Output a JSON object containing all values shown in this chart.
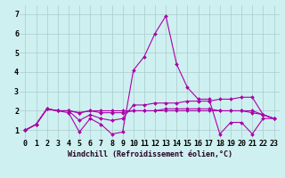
{
  "xlabel": "Windchill (Refroidissement éolien,°C)",
  "ylabel": "",
  "background_color": "#cff0f0",
  "grid_color": "#aacccc",
  "line_color": "#aa00aa",
  "xlim_min": -0.5,
  "xlim_max": 23.5,
  "ylim_min": 0.55,
  "ylim_max": 7.45,
  "yticks": [
    1,
    2,
    3,
    4,
    5,
    6,
    7
  ],
  "xticks": [
    0,
    1,
    2,
    3,
    4,
    5,
    6,
    7,
    8,
    9,
    10,
    11,
    12,
    13,
    14,
    15,
    16,
    17,
    18,
    19,
    20,
    21,
    22,
    23
  ],
  "xtick_labels": [
    "0",
    "1",
    "2",
    "3",
    "4",
    "5",
    "6",
    "7",
    "8",
    "9",
    "10",
    "11",
    "12",
    "13",
    "14",
    "15",
    "16",
    "17",
    "18",
    "19",
    "20",
    "21",
    "22",
    "23"
  ],
  "series": [
    [
      1.0,
      1.3,
      2.1,
      2.0,
      1.9,
      0.9,
      1.6,
      1.3,
      0.8,
      0.9,
      4.1,
      4.8,
      6.0,
      6.9,
      4.4,
      3.2,
      2.6,
      2.6,
      0.8,
      1.4,
      1.4,
      0.8,
      1.6,
      1.6
    ],
    [
      1.0,
      1.3,
      2.1,
      2.0,
      2.0,
      1.5,
      1.8,
      1.6,
      1.5,
      1.6,
      2.3,
      2.3,
      2.4,
      2.4,
      2.4,
      2.5,
      2.5,
      2.5,
      2.6,
      2.6,
      2.7,
      2.7,
      1.8,
      1.6
    ],
    [
      1.0,
      1.3,
      2.1,
      2.0,
      2.0,
      1.9,
      2.0,
      1.9,
      1.9,
      1.9,
      2.0,
      2.0,
      2.0,
      2.1,
      2.1,
      2.1,
      2.1,
      2.1,
      2.0,
      2.0,
      2.0,
      1.9,
      1.8,
      1.6
    ],
    [
      1.0,
      1.3,
      2.1,
      2.0,
      2.0,
      1.9,
      2.0,
      2.0,
      2.0,
      2.0,
      2.0,
      2.0,
      2.0,
      2.0,
      2.0,
      2.0,
      2.0,
      2.0,
      2.0,
      2.0,
      2.0,
      2.0,
      1.8,
      1.6
    ]
  ],
  "xlabel_fontsize": 6,
  "tick_fontsize": 6,
  "linewidth": 0.8,
  "markersize": 2.0
}
